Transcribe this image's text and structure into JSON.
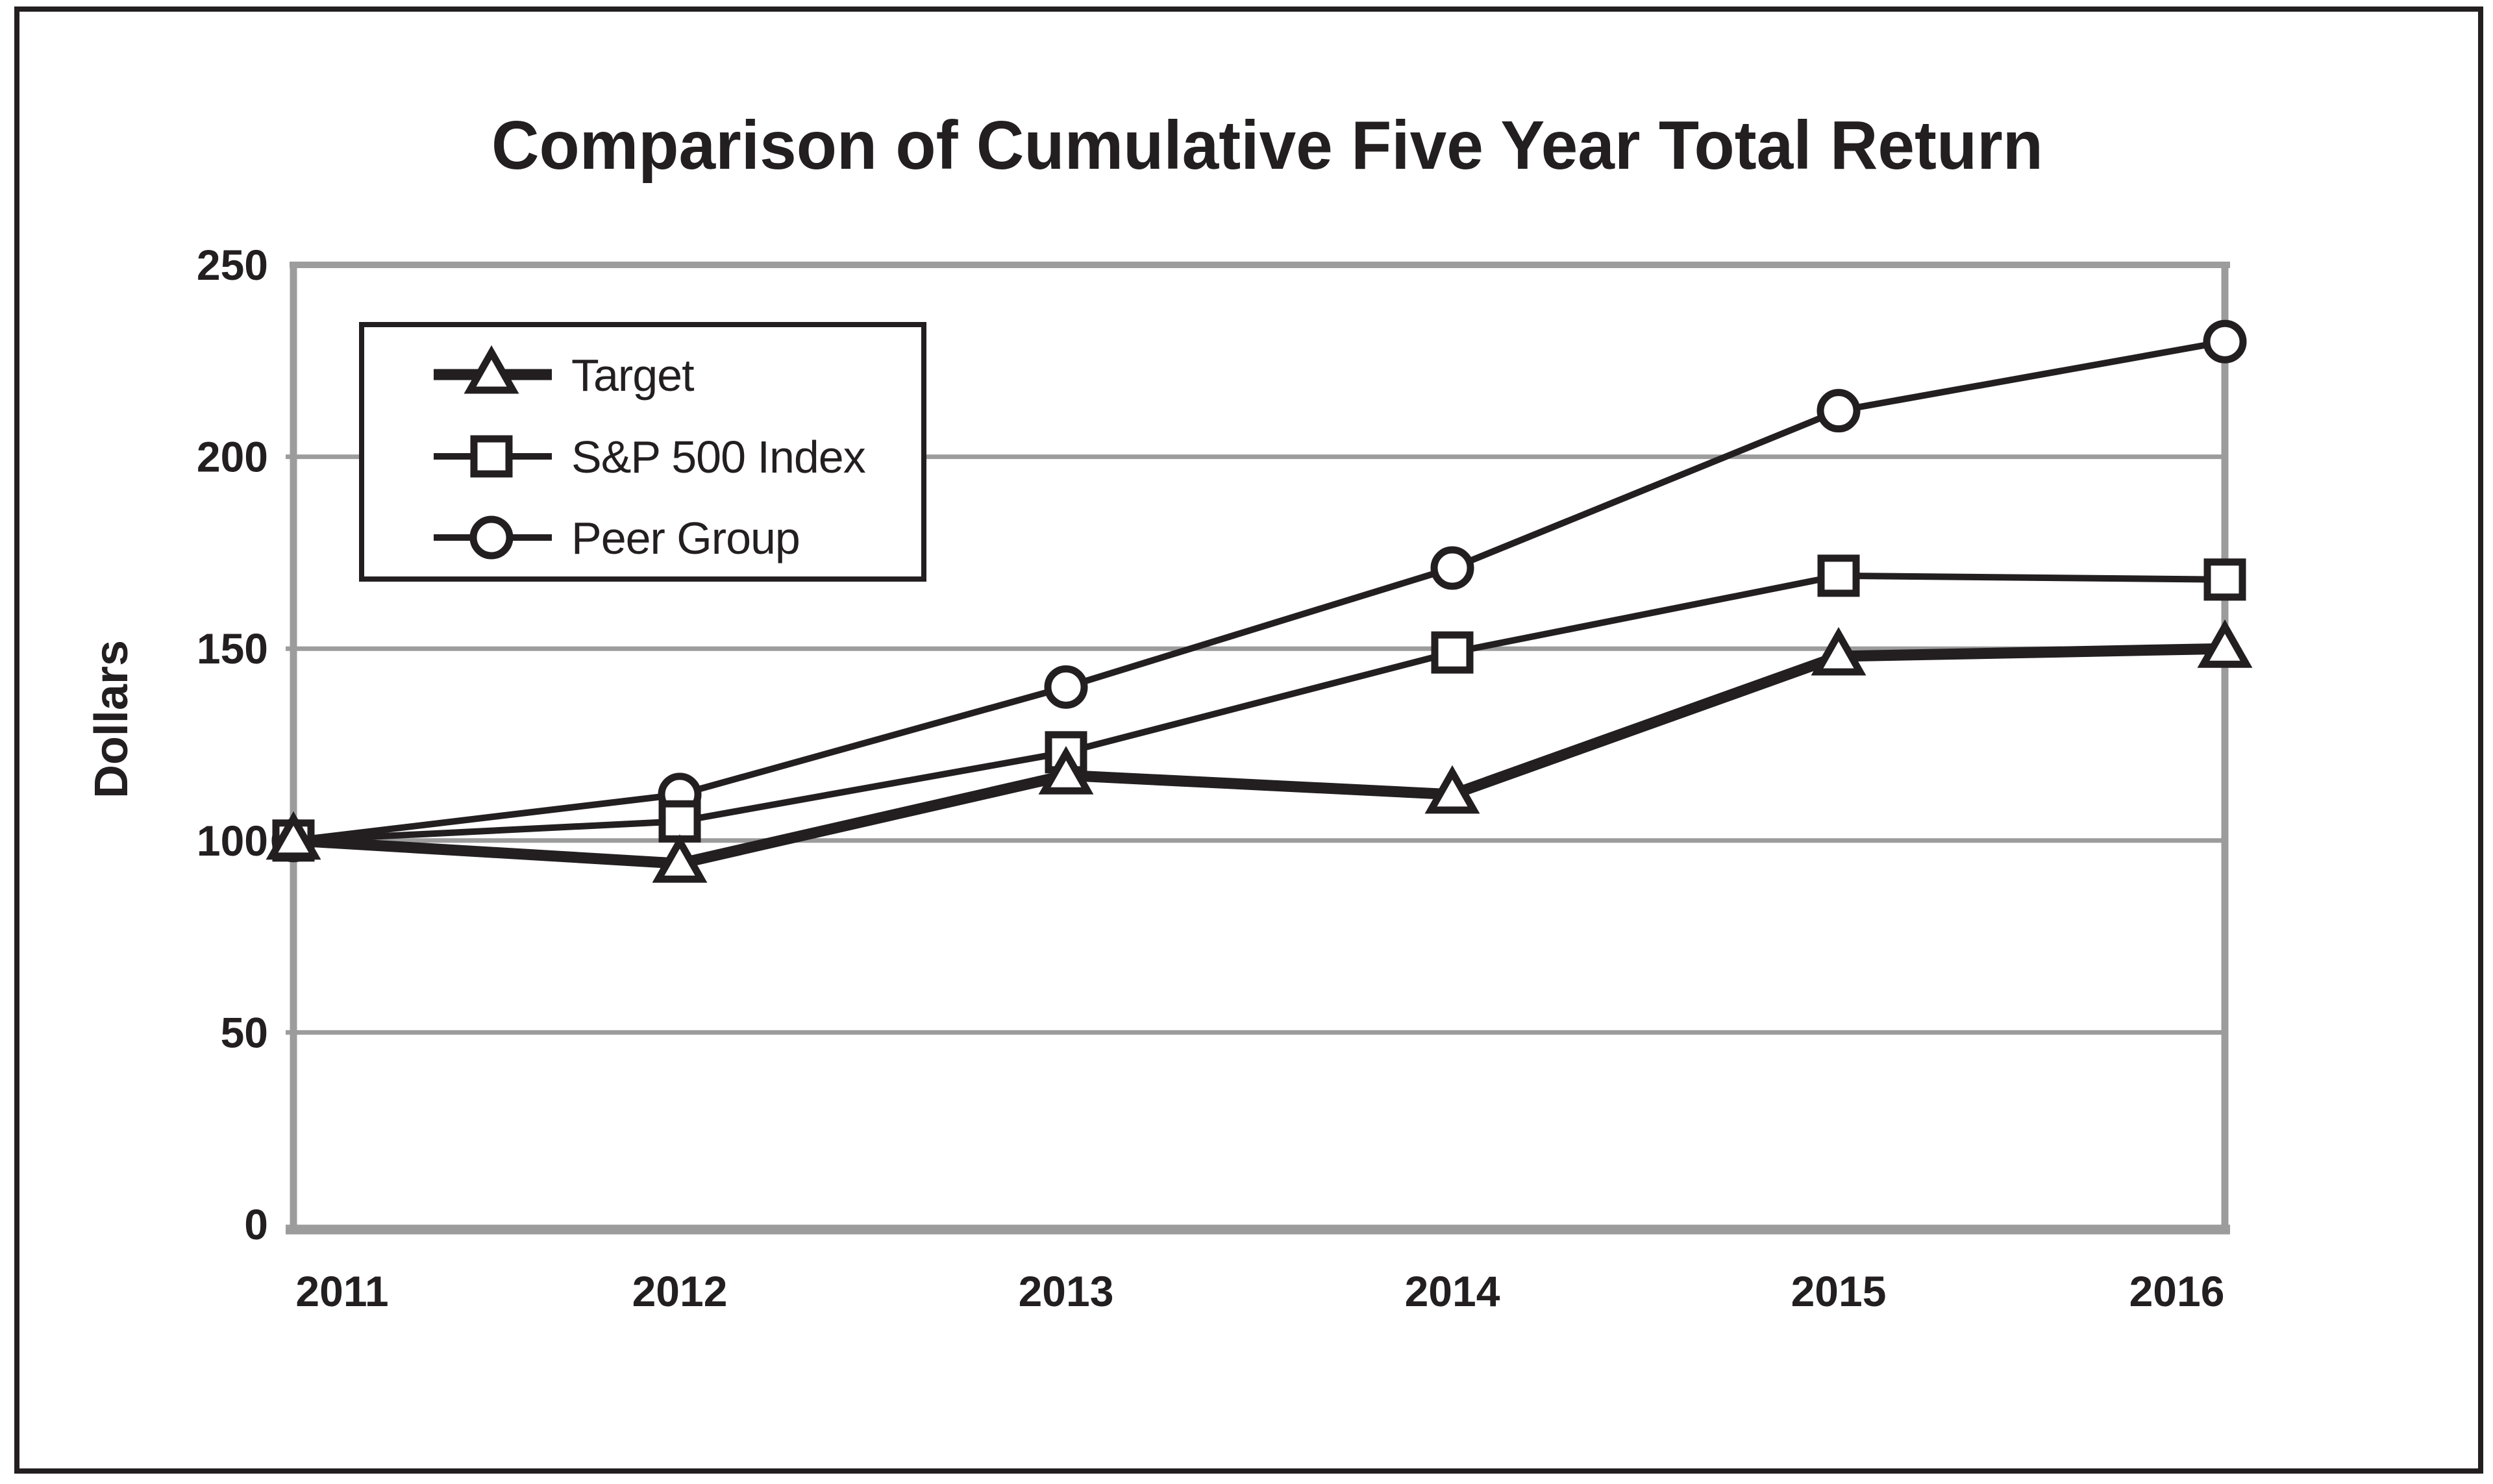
{
  "figure": {
    "title": "Comparison of Cumulative Five Year Total Return"
  },
  "y_axis": {
    "label": "Dollars",
    "tick_labels": [
      "0",
      "50",
      "100",
      "150",
      "200",
      "250"
    ]
  },
  "x_axis": {
    "tick_labels": [
      "2011",
      "2012",
      "2013",
      "2014",
      "2015",
      "2016"
    ]
  },
  "legend": {
    "items": [
      {
        "label": "Target",
        "marker": "triangle-icon",
        "line_style": "thick"
      },
      {
        "label": "S&P 500 Index",
        "marker": "square-icon",
        "line_style": "thin"
      },
      {
        "label": "Peer Group",
        "marker": "circle-icon",
        "line_style": "thin"
      }
    ]
  },
  "chart_data": {
    "type": "line",
    "title": "Comparison of Cumulative Five Year Total Return",
    "xlabel": "",
    "ylabel": "Dollars",
    "ylim": [
      0,
      250
    ],
    "yticks": [
      0,
      50,
      100,
      150,
      200,
      250
    ],
    "grid": true,
    "legend_position": "upper-left-inside",
    "categories": [
      "2011",
      "2012",
      "2013",
      "2014",
      "2015",
      "2016"
    ],
    "series": [
      {
        "name": "Target",
        "marker": "triangle",
        "line_style": "thick",
        "values": [
          100,
          94,
          117,
          112,
          148,
          150
        ]
      },
      {
        "name": "S&P 500 Index",
        "marker": "square",
        "line_style": "thin",
        "values": [
          100,
          105,
          123,
          149,
          169,
          168
        ]
      },
      {
        "name": "Peer Group",
        "marker": "circle",
        "line_style": "thin",
        "values": [
          100,
          112,
          140,
          171,
          212,
          230
        ]
      }
    ]
  },
  "colors": {
    "ink": "#231f20",
    "grid": "#9c9c9c",
    "plot_border": "#9c9c9c",
    "background": "#ffffff",
    "marker_fill": "#ffffff"
  }
}
